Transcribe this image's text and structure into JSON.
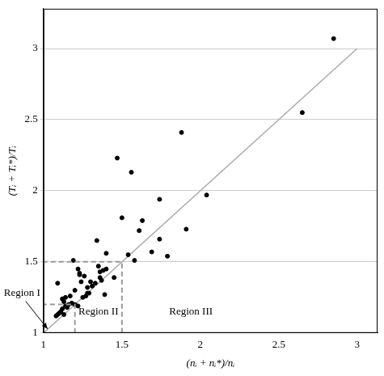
{
  "chart_data": {
    "type": "scatter",
    "x_label": "(nᵢ + nᵢ*)/nᵢ",
    "y_label": "(Tᵢ + Tᵢ*)/Tᵢ",
    "xlim": [
      1,
      3.13
    ],
    "xticks": [
      1,
      1.5,
      2,
      2.5,
      3
    ],
    "ylim": [
      1,
      3.28
    ],
    "yticks": [
      1,
      1.5,
      2,
      2.5,
      3
    ],
    "grid": "y",
    "color": "#000000",
    "marker": "circle",
    "x": [
      2.85,
      2.65,
      1.88,
      1.47,
      1.56,
      2.04,
      1.74,
      1.5,
      1.91,
      1.61,
      1.63,
      1.74,
      1.79,
      1.69,
      1.58,
      1.54,
      1.45,
      1.4,
      1.4,
      1.38,
      1.36,
      1.35,
      1.34,
      1.36,
      1.33,
      1.31,
      1.3,
      1.28,
      1.27,
      1.29,
      1.25,
      1.23,
      1.22,
      1.24,
      1.26,
      1.19,
      1.2,
      1.17,
      1.14,
      1.12,
      1.13,
      1.11,
      1.1,
      1.09,
      1.08,
      1.12,
      1.14,
      1.16,
      1.18,
      1.2,
      1.22,
      1.15,
      1.13,
      1.09,
      1.28,
      1.39,
      1.23,
      1.37
    ],
    "values": [
      3.07,
      2.55,
      2.41,
      2.23,
      2.13,
      1.97,
      1.94,
      1.81,
      1.73,
      1.72,
      1.79,
      1.66,
      1.54,
      1.57,
      1.51,
      1.55,
      1.39,
      1.56,
      1.45,
      1.44,
      1.43,
      1.47,
      1.65,
      1.39,
      1.35,
      1.33,
      1.36,
      1.28,
      1.26,
      1.28,
      1.25,
      1.42,
      1.45,
      1.36,
      1.4,
      1.51,
      1.3,
      1.26,
      1.25,
      1.24,
      1.22,
      1.15,
      1.14,
      1.13,
      1.12,
      1.17,
      1.19,
      1.2,
      1.21,
      1.2,
      1.19,
      1.18,
      1.13,
      1.35,
      1.32,
      1.27,
      1.41,
      1.37
    ],
    "reference_line": {
      "x": [
        1,
        3
      ],
      "values": [
        1,
        3
      ],
      "color": "#aaaaaa"
    },
    "regions": [
      {
        "label": "Region I",
        "bound": 1.2,
        "line_style": "dashed",
        "color": "#999999"
      },
      {
        "label": "Region II",
        "bound": 1.5,
        "line_style": "dashed",
        "color": "#999999"
      },
      {
        "label": "Region III"
      }
    ]
  }
}
